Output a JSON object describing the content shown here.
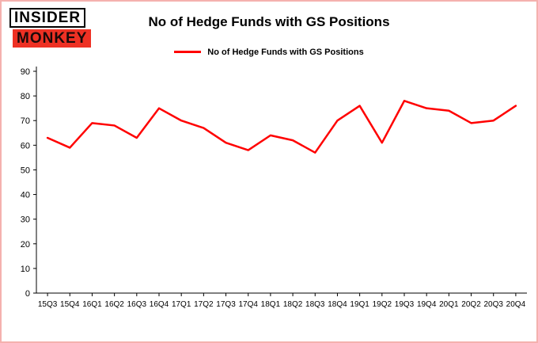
{
  "logo": {
    "top": "INSIDER",
    "bottom": "MONKEY"
  },
  "header": {
    "title": "No of Hedge Funds with GS Positions"
  },
  "legend": {
    "label": "No of Hedge Funds with GS Positions"
  },
  "chart_data": {
    "type": "line",
    "title": "No of Hedge Funds with GS Positions",
    "series_name": "No of Hedge Funds with GS Positions",
    "categories": [
      "15Q3",
      "15Q4",
      "16Q1",
      "16Q2",
      "16Q3",
      "16Q4",
      "17Q1",
      "17Q2",
      "17Q3",
      "17Q4",
      "18Q1",
      "18Q2",
      "18Q3",
      "18Q4",
      "19Q1",
      "19Q2",
      "19Q3",
      "19Q4",
      "20Q1",
      "20Q2",
      "20Q3",
      "20Q4"
    ],
    "values": [
      63,
      59,
      69,
      68,
      63,
      75,
      70,
      67,
      61,
      58,
      64,
      62,
      57,
      70,
      76,
      61,
      78,
      75,
      74,
      69,
      70,
      76
    ],
    "xlabel": "",
    "ylabel": "",
    "ylim": [
      0,
      90
    ],
    "yticks": [
      0,
      10,
      20,
      30,
      40,
      50,
      60,
      70,
      80,
      90
    ],
    "grid": false,
    "legend_position": "top",
    "line_color": "#ff0000"
  },
  "colors": {
    "frame_border": "#f5b1ae",
    "accent_red": "#ff0000",
    "logo_red": "#ee3124"
  }
}
